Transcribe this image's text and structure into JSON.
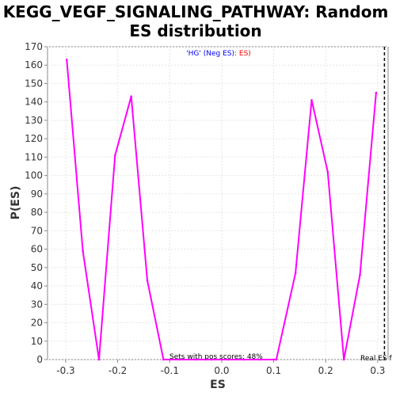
{
  "chart_data": {
    "type": "line",
    "title_line1": "KEGG_VEGF_SIGNALING_PATHWAY: Random",
    "title_line2": "ES distribution",
    "xlabel": "ES",
    "ylabel": "P(ES)",
    "xlim": [
      -0.335,
      0.32
    ],
    "ylim": [
      0,
      170
    ],
    "x_ticks": [
      -0.3,
      -0.2,
      -0.1,
      0.0,
      0.1,
      0.2,
      0.3
    ],
    "x_tick_labels": [
      "-0.3",
      "-0.2",
      "-0.1",
      "0.0",
      "0.1",
      "0.2",
      "0.3"
    ],
    "y_ticks": [
      0,
      10,
      20,
      30,
      40,
      50,
      60,
      70,
      80,
      90,
      100,
      110,
      120,
      130,
      140,
      150,
      160,
      170
    ],
    "grid": true,
    "legend": {
      "position": "top-center",
      "part1": "'HG' (Neg ES)",
      "part1_color": "#0000ff",
      "part2": ": ES)",
      "part2_color": "#ff0000"
    },
    "series": [
      {
        "color": "#ff00ff",
        "x": [
          -0.298,
          -0.267,
          -0.236,
          -0.205,
          -0.174,
          -0.143,
          -0.112,
          -0.081,
          -0.05,
          -0.019,
          0.012,
          0.043,
          0.074,
          0.105,
          0.142,
          0.173,
          0.204,
          0.235,
          0.266,
          0.297
        ],
        "y": [
          163,
          59,
          0,
          111,
          143,
          43,
          0,
          0,
          0,
          0,
          0,
          0,
          0,
          0,
          47,
          141,
          102,
          0,
          46,
          145
        ]
      }
    ],
    "real_es_x": 0.313,
    "annotations": {
      "pos_scores": "Sets with pos scores: 48%",
      "real_es": "Real ES f"
    }
  }
}
